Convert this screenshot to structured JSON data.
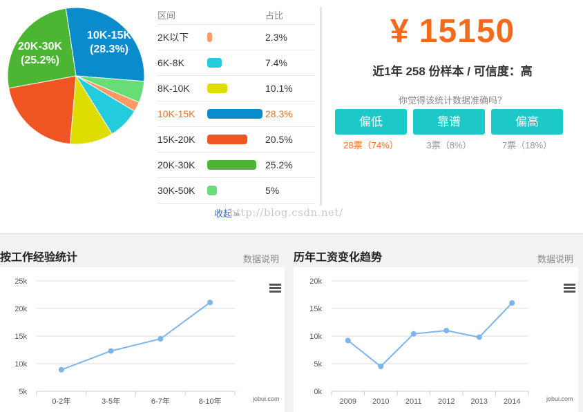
{
  "distribution": {
    "header_range": "区间",
    "header_share": "占比",
    "rows": [
      {
        "range": "2K以下",
        "share": "2.3%",
        "value": 2.3,
        "color": "#ff9966",
        "active": false
      },
      {
        "range": "6K-8K",
        "share": "7.4%",
        "value": 7.4,
        "color": "#22ccdd",
        "active": false
      },
      {
        "range": "8K-10K",
        "share": "10.1%",
        "value": 10.1,
        "color": "#dddd00",
        "active": false
      },
      {
        "range": "10K-15K",
        "share": "28.3%",
        "value": 28.3,
        "color": "#0a8bcb",
        "active": true
      },
      {
        "range": "15K-20K",
        "share": "20.5%",
        "value": 20.5,
        "color": "#ee5522",
        "active": false
      },
      {
        "range": "20K-30K",
        "share": "25.2%",
        "value": 25.2,
        "color": "#4db534",
        "active": false
      },
      {
        "range": "30K-50K",
        "share": "5%",
        "value": 5,
        "color": "#66dd77",
        "active": false
      }
    ],
    "collapse_label": "收起 »",
    "watermark": "http://blog.csdn.net/"
  },
  "pie": {
    "labels": [
      {
        "slice": "10K-15K",
        "line1": "10K-15K",
        "line2": "(28.3%)"
      },
      {
        "slice": "20K-30K",
        "line1": "20K-30K",
        "line2": "(25.2%)"
      }
    ]
  },
  "salary": {
    "amount": "¥ 15150",
    "sample_text": "近1年 258 份样本 / 可信度：高",
    "question": "你觉得该统计数据准确吗？",
    "votes": [
      {
        "label": "偏低",
        "count": "28票（74%）",
        "highlight": true
      },
      {
        "label": "靠谱",
        "count": "3票（8%）",
        "highlight": false
      },
      {
        "label": "偏高",
        "count": "7票（18%）",
        "highlight": false
      }
    ]
  },
  "experience": {
    "title": "按工作经验统计",
    "link": "数据说明",
    "credit": "jobui.com"
  },
  "trend": {
    "title": "历年工资变化趋势",
    "link": "数据说明",
    "credit": "jobui.com"
  },
  "chart_data": [
    {
      "type": "pie",
      "categories": [
        "10K-15K",
        "30K-50K",
        "2K以下",
        "6K-8K",
        "8K-10K",
        "15K-20K",
        "20K-30K"
      ],
      "values": [
        28.3,
        5,
        2.3,
        7.4,
        10.1,
        20.5,
        25.2
      ],
      "colors": [
        "#0a8bcb",
        "#66dd77",
        "#ff9966",
        "#22ccdd",
        "#dddd00",
        "#ee5522",
        "#4db534"
      ]
    },
    {
      "type": "line",
      "categories": [
        "0-2年",
        "3-5年",
        "6-7年",
        "8-10年"
      ],
      "values": [
        8900,
        12300,
        14500,
        21100
      ],
      "ylim": [
        5000,
        25000
      ],
      "yticks": [
        "5k",
        "10k",
        "15k",
        "20k",
        "25k"
      ],
      "color": "#7cb5ec",
      "grid": true
    },
    {
      "type": "line",
      "categories": [
        "2009",
        "2010",
        "2011",
        "2012",
        "2013",
        "2014"
      ],
      "values": [
        9200,
        4500,
        10400,
        11000,
        9800,
        16000
      ],
      "ylim": [
        0,
        20000
      ],
      "yticks": [
        "0k",
        "5k",
        "10k",
        "15k",
        "20k"
      ],
      "color": "#7cb5ec",
      "grid": true
    }
  ]
}
